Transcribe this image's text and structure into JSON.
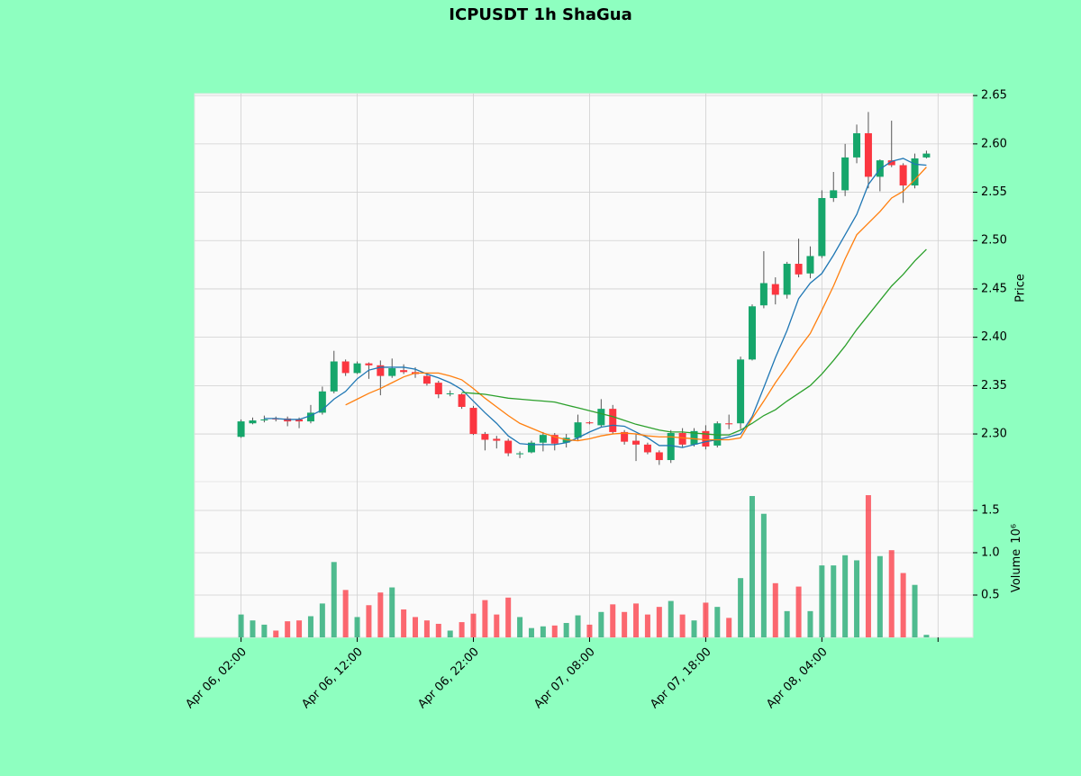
{
  "chart_data": {
    "type": "candlestick",
    "title": "ICPUSDT 1h ShaGua",
    "ylabel": "Price",
    "volume_label": "Volume",
    "volume_multiplier": "10⁶",
    "up_color": "#16a66b",
    "down_color": "#fb3640",
    "grid": true,
    "xlim": [
      -4,
      63
    ],
    "xticks": [
      {
        "value": 0,
        "label": "Apr 06, 02:00"
      },
      {
        "value": 10,
        "label": "Apr 06, 12:00"
      },
      {
        "value": 20,
        "label": "Apr 06, 22:00"
      },
      {
        "value": 30,
        "label": "Apr 07, 08:00"
      },
      {
        "value": 40,
        "label": "Apr 07, 18:00"
      },
      {
        "value": 50,
        "label": "Apr 08, 04:00"
      },
      {
        "value": 60,
        "label": null
      }
    ],
    "ylim": [
      2.2507,
      2.652
    ],
    "yticks": [
      {
        "value": 2.3,
        "label": "2.30"
      },
      2.35,
      {
        "value": 2.4,
        "label": "2.40"
      },
      2.45,
      {
        "value": 2.5,
        "label": "2.50"
      },
      2.55,
      {
        "value": 2.6,
        "label": "2.60"
      },
      2.65
    ],
    "volume_ylim": [
      0,
      1.84
    ],
    "volume_yticks": [
      0.5,
      {
        "value": 1,
        "label": "1.0"
      },
      1.5
    ],
    "open": [
      2.297,
      2.311,
      2.314,
      2.316,
      2.316,
      2.315,
      2.313,
      2.322,
      2.344,
      2.375,
      2.363,
      2.373,
      2.371,
      2.36,
      2.366,
      2.364,
      2.36,
      2.353,
      2.341,
      2.341,
      2.327,
      2.3,
      2.295,
      2.293,
      2.279,
      2.281,
      2.291,
      2.299,
      2.291,
      2.296,
      2.312,
      2.309,
      2.326,
      2.302,
      2.293,
      2.289,
      2.281,
      2.273,
      2.301,
      2.289,
      2.303,
      2.288,
      2.311,
      2.311,
      2.377,
      2.433,
      2.455,
      2.444,
      2.476,
      2.466,
      2.484,
      2.544,
      2.552,
      2.586,
      2.611,
      2.566,
      2.583,
      2.578,
      2.557,
      2.586
    ],
    "high": [
      2.315,
      2.317,
      2.319,
      2.318,
      2.318,
      2.317,
      2.33,
      2.349,
      2.386,
      2.377,
      2.375,
      2.374,
      2.376,
      2.378,
      2.372,
      2.369,
      2.362,
      2.355,
      2.345,
      2.342,
      2.329,
      2.302,
      2.298,
      2.295,
      2.282,
      2.293,
      2.302,
      2.301,
      2.3,
      2.32,
      2.313,
      2.336,
      2.33,
      2.304,
      2.3,
      2.291,
      2.283,
      2.304,
      2.306,
      2.306,
      2.309,
      2.313,
      2.32,
      2.38,
      2.434,
      2.489,
      2.462,
      2.478,
      2.502,
      2.494,
      2.552,
      2.571,
      2.6,
      2.62,
      2.633,
      2.584,
      2.624,
      2.58,
      2.59,
      2.593
    ],
    "low": [
      2.296,
      2.31,
      2.312,
      2.313,
      2.308,
      2.306,
      2.311,
      2.32,
      2.342,
      2.36,
      2.362,
      2.357,
      2.34,
      2.358,
      2.362,
      2.358,
      2.35,
      2.337,
      2.339,
      2.326,
      2.299,
      2.283,
      2.285,
      2.277,
      2.275,
      2.28,
      2.282,
      2.283,
      2.286,
      2.293,
      2.31,
      2.307,
      2.3,
      2.289,
      2.272,
      2.279,
      2.268,
      2.27,
      2.286,
      2.287,
      2.284,
      2.286,
      2.305,
      2.305,
      2.376,
      2.43,
      2.434,
      2.44,
      2.462,
      2.461,
      2.482,
      2.54,
      2.546,
      2.58,
      2.554,
      2.551,
      2.576,
      2.539,
      2.554,
      2.585
    ],
    "close": [
      2.313,
      2.314,
      2.315,
      2.315,
      2.313,
      2.313,
      2.322,
      2.344,
      2.375,
      2.363,
      2.373,
      2.371,
      2.36,
      2.368,
      2.364,
      2.362,
      2.352,
      2.341,
      2.342,
      2.328,
      2.3,
      2.294,
      2.293,
      2.28,
      2.28,
      2.291,
      2.299,
      2.29,
      2.296,
      2.312,
      2.311,
      2.326,
      2.302,
      2.292,
      2.289,
      2.281,
      2.273,
      2.301,
      2.289,
      2.303,
      2.287,
      2.311,
      2.31,
      2.377,
      2.432,
      2.456,
      2.444,
      2.476,
      2.465,
      2.484,
      2.544,
      2.552,
      2.586,
      2.611,
      2.566,
      2.583,
      2.578,
      2.557,
      2.585,
      2.59
    ],
    "volume": [
      0.27,
      0.2,
      0.15,
      0.08,
      0.19,
      0.2,
      0.25,
      0.4,
      0.89,
      0.56,
      0.24,
      0.38,
      0.53,
      0.59,
      0.33,
      0.24,
      0.2,
      0.16,
      0.08,
      0.18,
      0.28,
      0.44,
      0.27,
      0.47,
      0.24,
      0.11,
      0.13,
      0.14,
      0.17,
      0.26,
      0.15,
      0.3,
      0.39,
      0.3,
      0.4,
      0.27,
      0.36,
      0.43,
      0.27,
      0.2,
      0.41,
      0.36,
      0.23,
      0.7,
      1.67,
      1.46,
      0.64,
      0.31,
      0.6,
      0.31,
      0.85,
      0.85,
      0.97,
      0.91,
      1.68,
      0.96,
      1.03,
      0.76,
      0.62,
      0.03
    ],
    "series": [
      {
        "color": "#1f77b4",
        "values": [
          null,
          null,
          2.316,
          2.316,
          2.315,
          2.315,
          2.319,
          2.325,
          2.336,
          2.344,
          2.357,
          2.366,
          2.369,
          2.369,
          2.369,
          2.367,
          2.362,
          2.358,
          2.353,
          2.346,
          2.334,
          2.322,
          2.311,
          2.298,
          2.29,
          2.289,
          2.289,
          2.289,
          2.291,
          2.296,
          2.302,
          2.307,
          2.309,
          2.308,
          2.302,
          2.296,
          2.288,
          2.288,
          2.286,
          2.289,
          2.292,
          2.294,
          2.297,
          2.3,
          2.318,
          2.348,
          2.379,
          2.407,
          2.44,
          2.456,
          2.466,
          2.485,
          2.506,
          2.527,
          2.558,
          2.574,
          2.582,
          2.585,
          2.579,
          2.578
        ]
      },
      {
        "color": "#ff7f0e",
        "values": [
          null,
          null,
          null,
          null,
          null,
          null,
          null,
          null,
          null,
          2.33,
          2.336,
          2.342,
          2.347,
          2.353,
          2.359,
          2.363,
          2.363,
          2.363,
          2.36,
          2.356,
          2.347,
          2.337,
          2.328,
          2.319,
          2.311,
          2.306,
          2.301,
          2.297,
          2.294,
          2.293,
          2.295,
          2.298,
          2.3,
          2.301,
          2.3,
          2.298,
          2.297,
          2.297,
          2.296,
          2.295,
          2.294,
          2.294,
          2.294,
          2.296,
          2.316,
          2.334,
          2.353,
          2.37,
          2.388,
          2.404,
          2.428,
          2.453,
          2.481,
          2.506,
          2.518,
          2.53,
          2.544,
          2.551,
          2.563,
          2.576
        ]
      },
      {
        "color": "#2ca02c",
        "values": [
          null,
          null,
          null,
          null,
          null,
          null,
          null,
          null,
          null,
          null,
          null,
          null,
          null,
          null,
          null,
          null,
          null,
          null,
          null,
          2.343,
          2.342,
          2.341,
          2.339,
          2.337,
          2.336,
          2.335,
          2.334,
          2.333,
          2.33,
          2.327,
          2.324,
          2.321,
          2.318,
          2.314,
          2.31,
          2.307,
          2.304,
          2.302,
          2.302,
          2.301,
          2.3,
          2.299,
          2.299,
          2.304,
          2.311,
          2.319,
          2.325,
          2.334,
          2.342,
          2.35,
          2.362,
          2.376,
          2.391,
          2.408,
          2.423,
          2.438,
          2.453,
          2.465,
          2.479,
          2.491
        ]
      }
    ]
  }
}
